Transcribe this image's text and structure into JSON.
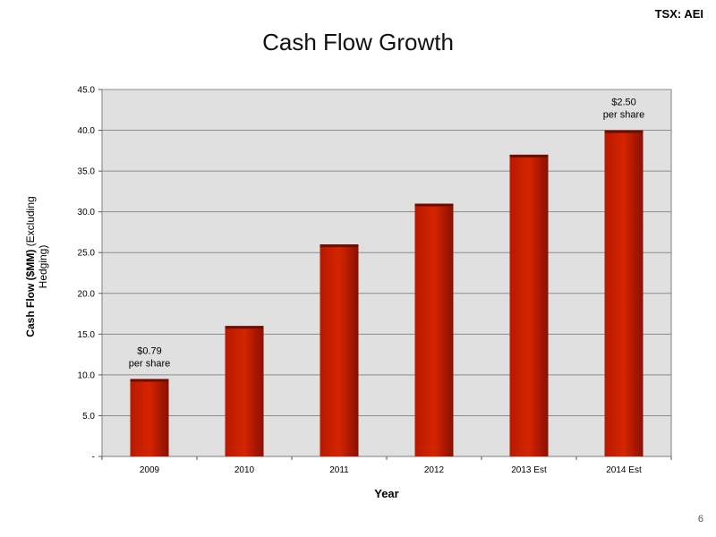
{
  "header": {
    "ticker_label": "TSX: AEI",
    "page_number": "6"
  },
  "chart_data": {
    "type": "bar",
    "title": "Cash Flow Growth",
    "xlabel": "Year",
    "ylabel_bold": "Cash Flow ($MM)",
    "ylabel_rest": "(Excluding",
    "ylabel_line2": "Hedging)",
    "categories": [
      "2009",
      "2010",
      "2011",
      "2012",
      "2013 Est",
      "2014 Est"
    ],
    "values": [
      9.5,
      16.0,
      26.0,
      31.0,
      37.0,
      40.0
    ],
    "ylim": [
      0,
      45
    ],
    "yticks": [
      0,
      5,
      10,
      15,
      20,
      25,
      30,
      35,
      40,
      45
    ],
    "ytick_labels": [
      "-",
      "5.0",
      "10.0",
      "15.0",
      "20.0",
      "25.0",
      "30.0",
      "35.0",
      "40.0",
      "45.0"
    ],
    "grid": true,
    "bar_color": "#cc1f00",
    "plot_background": "#e0e0e0",
    "annotations": [
      {
        "category": "2009",
        "line1": "$0.79",
        "line2": "per share"
      },
      {
        "category": "2014 Est",
        "line1": "$2.50",
        "line2": "per share"
      }
    ]
  }
}
